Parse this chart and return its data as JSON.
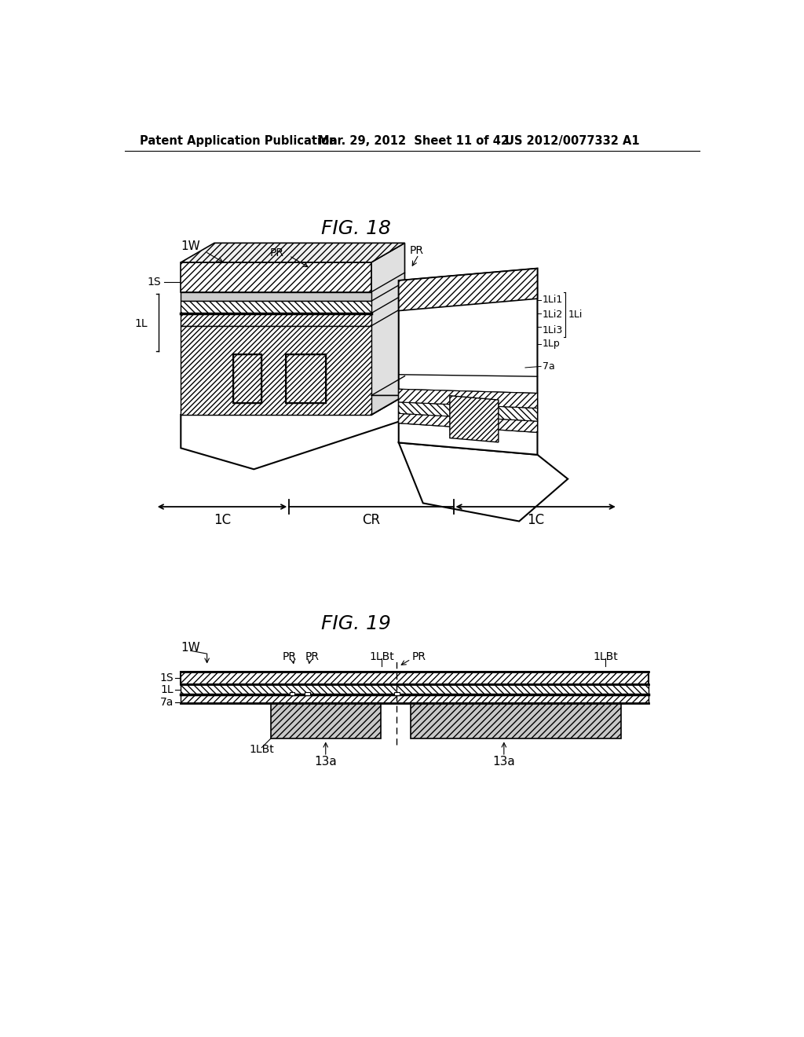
{
  "header_left": "Patent Application Publication",
  "header_mid": "Mar. 29, 2012  Sheet 11 of 42",
  "header_right": "US 2012/0077332 A1",
  "fig18_title": "FIG. 18",
  "fig19_title": "FIG. 19",
  "bg_color": "#ffffff",
  "line_color": "#000000"
}
